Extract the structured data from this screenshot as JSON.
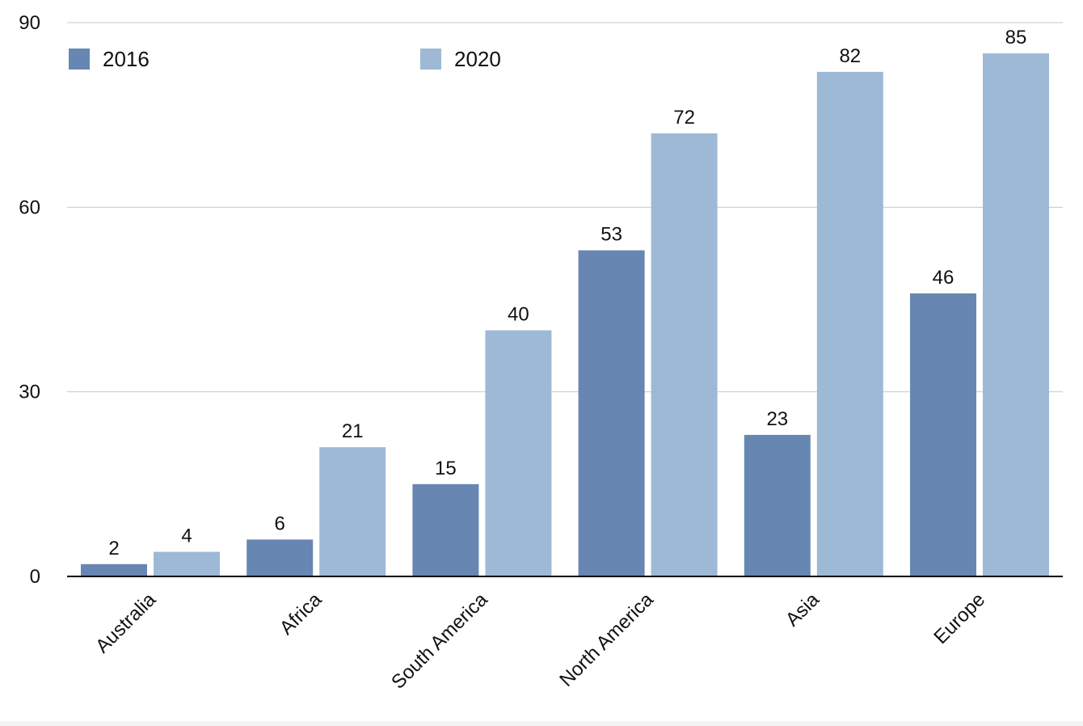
{
  "chart_data": {
    "type": "bar",
    "title": "",
    "xlabel": "",
    "ylabel": "",
    "categories": [
      "Australia",
      "Africa",
      "South America",
      "North America",
      "Asia",
      "Europe"
    ],
    "series": [
      {
        "name": "2016",
        "color": "#6787b2",
        "values": [
          2,
          6,
          15,
          53,
          23,
          46
        ]
      },
      {
        "name": "2020",
        "color": "#9eb9d5",
        "values": [
          4,
          21,
          40,
          72,
          82,
          85
        ]
      }
    ],
    "ylim": [
      0,
      90
    ],
    "yticks": [
      0,
      30,
      60,
      90
    ],
    "grid": true,
    "legend_position": "top",
    "data_labels": true,
    "category_label_rotation": -45
  }
}
